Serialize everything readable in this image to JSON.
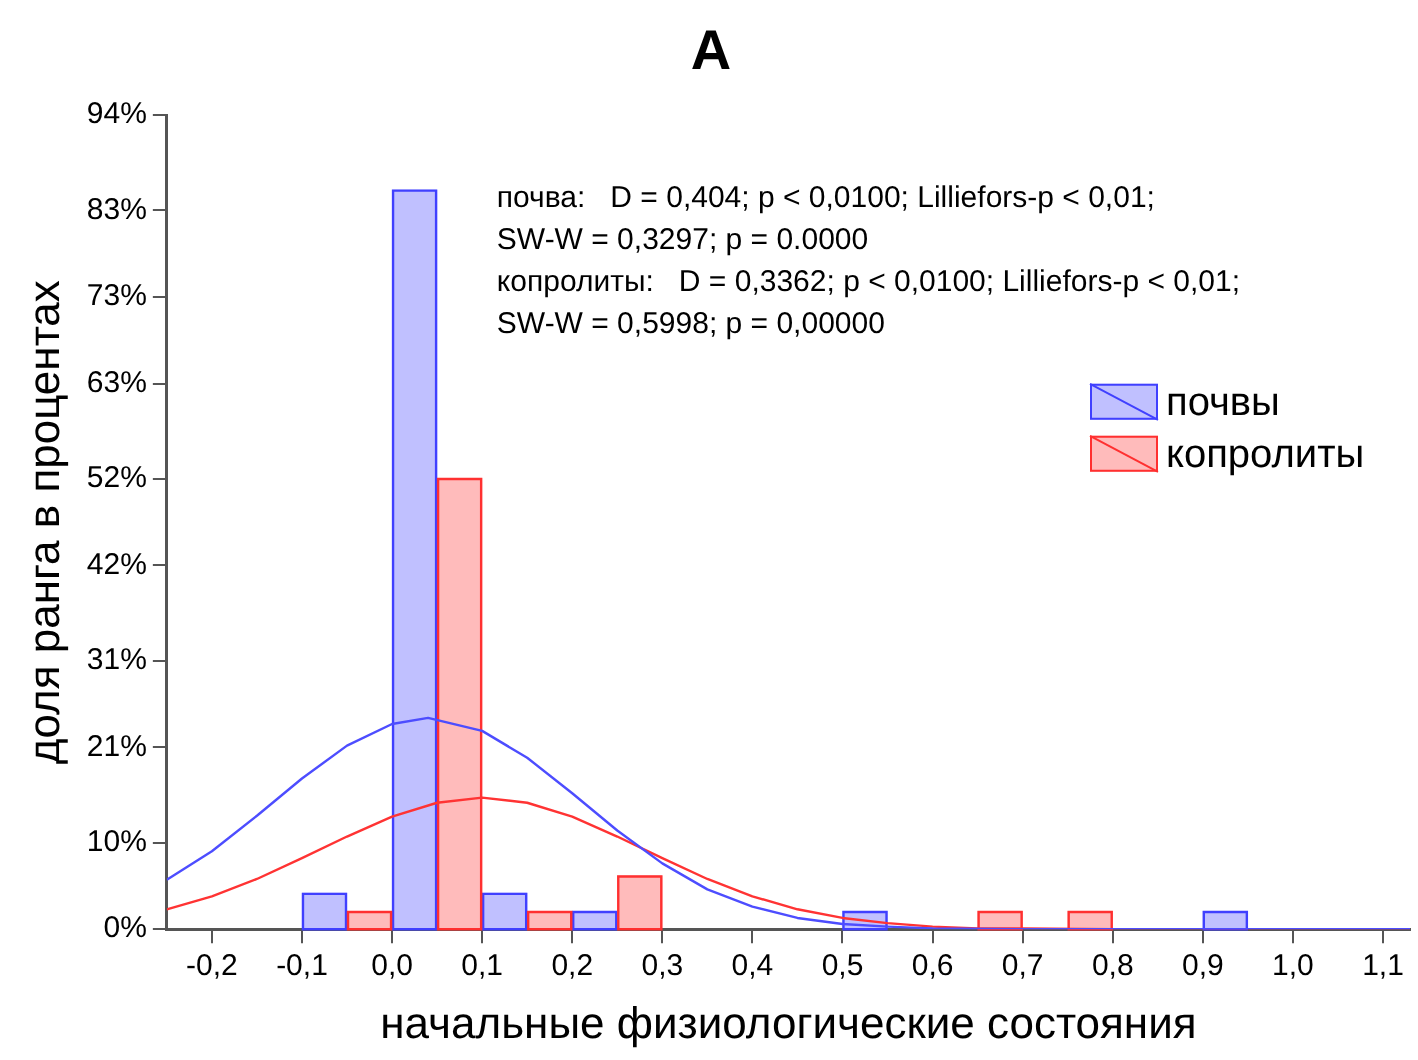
{
  "chart_data": {
    "type": "histogram",
    "title": "A",
    "xlabel": "начальные физиологические состояния",
    "ylabel": "доля ранга в процентах",
    "bins": [
      -0.1,
      0,
      0.1,
      0.2,
      0.3,
      0.4,
      0.5,
      0.6,
      0.7,
      0.8,
      0.9,
      1.0
    ],
    "xlim": [
      -0.25,
      1.13
    ],
    "xticks": [
      {
        "value": -0.2,
        "label": "-0,2"
      },
      {
        "value": -0.1,
        "label": "-0,1"
      },
      {
        "value": 0,
        "label": "0,0"
      },
      {
        "value": 0.1,
        "label": "0,1"
      },
      {
        "value": 0.2,
        "label": "0,2"
      },
      {
        "value": 0.3,
        "label": "0,3"
      },
      {
        "value": 0.4,
        "label": "0,4"
      },
      {
        "value": 0.5,
        "label": "0,5"
      },
      {
        "value": 0.6,
        "label": "0,6"
      },
      {
        "value": 0.7,
        "label": "0,7"
      },
      {
        "value": 0.8,
        "label": "0,8"
      },
      {
        "value": 0.9,
        "label": "0,9"
      },
      {
        "value": 1.0,
        "label": "1,0"
      },
      {
        "value": 1.1,
        "label": "1,1"
      }
    ],
    "ylim": [
      0,
      94
    ],
    "yticks": [
      {
        "value": 0,
        "label": "0%"
      },
      {
        "value": 10,
        "label": "10%"
      },
      {
        "value": 21,
        "label": "21%"
      },
      {
        "value": 31,
        "label": "31%"
      },
      {
        "value": 42,
        "label": "42%"
      },
      {
        "value": 52,
        "label": "52%"
      },
      {
        "value": 63,
        "label": "63%"
      },
      {
        "value": 73,
        "label": "73%"
      },
      {
        "value": 83,
        "label": "83%"
      },
      {
        "value": 94,
        "label": "94%"
      }
    ],
    "grid": false,
    "legend": "right",
    "annotations": [
      "почва:   D = 0,404; p < 0,0100; Lilliefors-p < 0,01;",
      "SW-W = 0,3297; p = 0.0000",
      "копролиты:   D = 0,3362; p < 0,0100; Lilliefors-p < 0,01;",
      "SW-W = 0,5998; p = 0,00000"
    ],
    "series": [
      {
        "name": "почвы",
        "color": "#4040ff",
        "values": [
          4.2,
          85.4,
          4.2,
          2.1,
          0,
          0,
          2.1,
          0,
          0,
          0,
          2.1
        ]
      },
      {
        "name": "копролиты",
        "color": "#ff3030",
        "values": [
          2.1,
          52.1,
          2.1,
          6.2,
          0,
          0,
          0,
          2.1,
          2.1,
          0,
          0
        ]
      },
      {
        "type": "line",
        "color": "#4d4dff",
        "x": [
          -0.25,
          -0.2,
          -0.15,
          -0.1,
          -0.05,
          0,
          0.04,
          0.1,
          0.15,
          0.2,
          0.25,
          0.3,
          0.35,
          0.4,
          0.45,
          0.5,
          0.55,
          0.6,
          0.7,
          0.8,
          1.13
        ],
        "values": [
          5.7,
          9.0,
          13.1,
          17.4,
          21.2,
          23.7,
          24.4,
          22.9,
          19.8,
          15.7,
          11.4,
          7.6,
          4.6,
          2.6,
          1.3,
          0.6,
          0.3,
          0.1,
          0,
          0,
          0
        ]
      },
      {
        "type": "line",
        "color": "#ff3333",
        "x": [
          -0.25,
          -0.2,
          -0.15,
          -0.1,
          -0.05,
          0,
          0.05,
          0.1,
          0.15,
          0.2,
          0.25,
          0.3,
          0.35,
          0.4,
          0.45,
          0.5,
          0.55,
          0.6,
          0.65,
          0.7,
          0.8,
          1.13
        ],
        "values": [
          2.3,
          3.8,
          5.8,
          8.2,
          10.7,
          13.0,
          14.6,
          15.2,
          14.6,
          13.0,
          10.7,
          8.2,
          5.8,
          3.8,
          2.3,
          1.3,
          0.7,
          0.3,
          0.1,
          0.1,
          0,
          0
        ]
      }
    ]
  }
}
